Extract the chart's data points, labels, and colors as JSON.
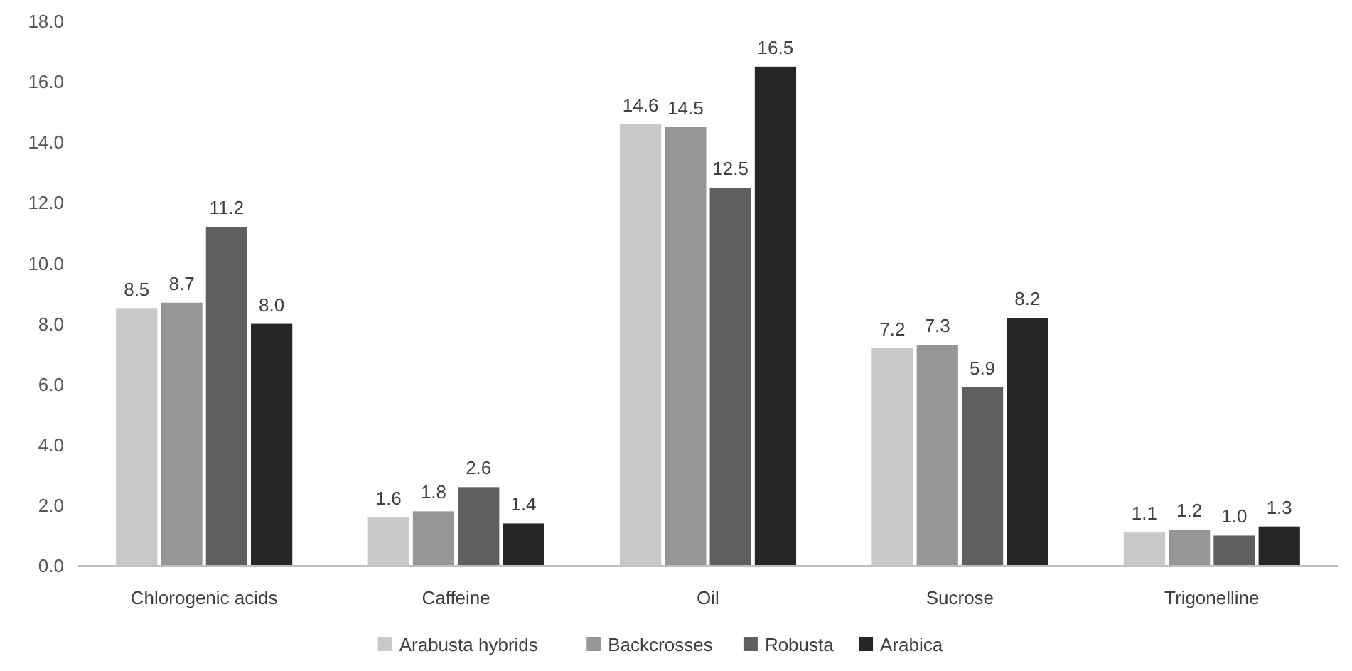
{
  "chart_data": {
    "type": "bar",
    "categories": [
      "Chlorogenic acids",
      "Caffeine",
      "Oil",
      "Sucrose",
      "Trigonelline"
    ],
    "series": [
      {
        "name": "Arabusta hybrids",
        "color": "#c8c8c8",
        "values": [
          8.5,
          1.6,
          14.6,
          7.2,
          1.1
        ],
        "value_labels": [
          "8.5",
          "1.6",
          "14.6",
          "7.2",
          "1.1"
        ]
      },
      {
        "name": "Backcrosses",
        "color": "#969696",
        "values": [
          8.7,
          1.8,
          14.5,
          7.3,
          1.2
        ],
        "value_labels": [
          "8.7",
          "1.8",
          "14.5",
          "7.3",
          "1.2"
        ]
      },
      {
        "name": "Robusta",
        "color": "#5f5f5f",
        "values": [
          11.2,
          2.6,
          12.5,
          5.9,
          1.0
        ],
        "value_labels": [
          "11.2",
          "2.6",
          "12.5",
          "5.9",
          "1.0"
        ]
      },
      {
        "name": "Arabica",
        "color": "#262626",
        "values": [
          8.0,
          1.4,
          16.5,
          8.2,
          1.3
        ],
        "value_labels": [
          "8.0",
          "1.4",
          "16.5",
          "8.2",
          "1.3"
        ]
      }
    ],
    "ylim": [
      0,
      18
    ],
    "yticks": [
      {
        "value": 0,
        "label": "0.0"
      },
      {
        "value": 2,
        "label": "2.0"
      },
      {
        "value": 4,
        "label": "4.0"
      },
      {
        "value": 6,
        "label": "6.0"
      },
      {
        "value": 8,
        "label": "8.0"
      },
      {
        "value": 10,
        "label": "10.0"
      },
      {
        "value": 12,
        "label": "12.0"
      },
      {
        "value": 14,
        "label": "14.0"
      },
      {
        "value": 16,
        "label": "16.0"
      },
      {
        "value": 18,
        "label": "18.0"
      }
    ],
    "grid": false,
    "legend": "bottom"
  }
}
